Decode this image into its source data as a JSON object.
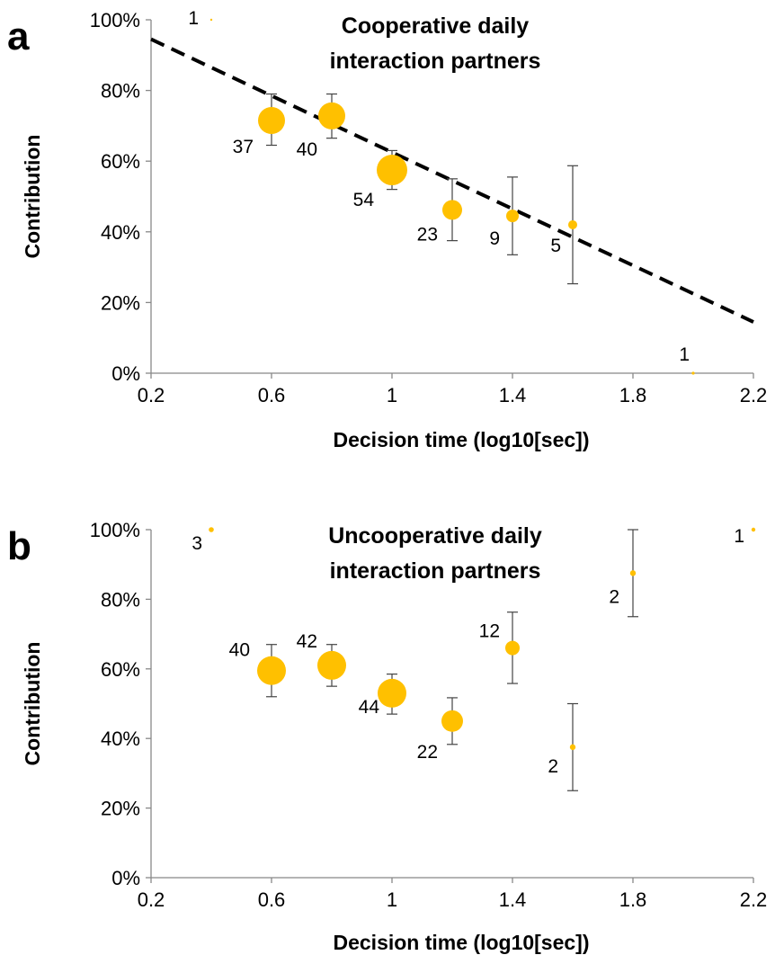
{
  "chart_data": [
    {
      "type": "scatter",
      "panel_letter": "a",
      "title_lines": [
        "Cooperative daily",
        "interaction partners"
      ],
      "xlabel": "Decision time  (log10[sec])",
      "ylabel": "Contribution",
      "xlim": [
        0.2,
        2.2
      ],
      "ylim": [
        0,
        100
      ],
      "x_ticks": [
        "0.2",
        "0.6",
        "1",
        "1.4",
        "1.8",
        "2.2"
      ],
      "x_tick_values": [
        0.2,
        0.6,
        1.0,
        1.4,
        1.8,
        2.2
      ],
      "y_ticks": [
        "0%",
        "20%",
        "40%",
        "60%",
        "80%",
        "100%"
      ],
      "y_tick_values": [
        0,
        20,
        40,
        60,
        80,
        100
      ],
      "grid": false,
      "marker_color": "#FFC000",
      "points": [
        {
          "x": 0.4,
          "y": 100,
          "n": "1",
          "err_low": null,
          "err_high": null
        },
        {
          "x": 0.6,
          "y": 71.5,
          "n": "37",
          "err_low": 64.5,
          "err_high": 79
        },
        {
          "x": 0.8,
          "y": 72.8,
          "n": "40",
          "err_low": 66.5,
          "err_high": 79
        },
        {
          "x": 1.0,
          "y": 57.5,
          "n": "54",
          "err_low": 52,
          "err_high": 63
        },
        {
          "x": 1.2,
          "y": 46.2,
          "n": "23",
          "err_low": 37.5,
          "err_high": 55
        },
        {
          "x": 1.4,
          "y": 44.5,
          "n": "9",
          "err_low": 33.5,
          "err_high": 55.5
        },
        {
          "x": 1.6,
          "y": 42,
          "n": "5",
          "err_low": 25.3,
          "err_high": 58.7
        },
        {
          "x": 2.0,
          "y": 0,
          "n": "1",
          "err_low": null,
          "err_high": null
        }
      ],
      "trendline": {
        "x": [
          0.2,
          2.2
        ],
        "y": [
          94.5,
          14.5
        ],
        "style": "dashed",
        "color": "#000000"
      }
    },
    {
      "type": "scatter",
      "panel_letter": "b",
      "title_lines": [
        "Uncooperative daily",
        "interaction partners"
      ],
      "xlabel": "Decision time  (log10[sec])",
      "ylabel": "Contribution",
      "xlim": [
        0.2,
        2.2
      ],
      "ylim": [
        0,
        100
      ],
      "x_ticks": [
        "0.2",
        "0.6",
        "1",
        "1.4",
        "1.8",
        "2.2"
      ],
      "x_tick_values": [
        0.2,
        0.6,
        1.0,
        1.4,
        1.8,
        2.2
      ],
      "y_ticks": [
        "0%",
        "20%",
        "40%",
        "60%",
        "80%",
        "100%"
      ],
      "y_tick_values": [
        0,
        20,
        40,
        60,
        80,
        100
      ],
      "grid": false,
      "marker_color": "#FFC000",
      "points": [
        {
          "x": 0.4,
          "y": 100,
          "n": "3",
          "err_low": null,
          "err_high": null
        },
        {
          "x": 0.6,
          "y": 59.5,
          "n": "40",
          "err_low": 52,
          "err_high": 67
        },
        {
          "x": 0.8,
          "y": 61,
          "n": "42",
          "err_low": 55,
          "err_high": 67
        },
        {
          "x": 1.0,
          "y": 53,
          "n": "44",
          "err_low": 47,
          "err_high": 58.5
        },
        {
          "x": 1.2,
          "y": 45,
          "n": "22",
          "err_low": 38.3,
          "err_high": 51.7
        },
        {
          "x": 1.4,
          "y": 66,
          "n": "12",
          "err_low": 55.8,
          "err_high": 76.3
        },
        {
          "x": 1.6,
          "y": 37.5,
          "n": "2",
          "err_low": 25,
          "err_high": 50
        },
        {
          "x": 1.8,
          "y": 87.5,
          "n": "2",
          "err_low": 75,
          "err_high": 100
        },
        {
          "x": 2.2,
          "y": 100,
          "n": "1",
          "err_low": null,
          "err_high": null
        }
      ]
    }
  ]
}
